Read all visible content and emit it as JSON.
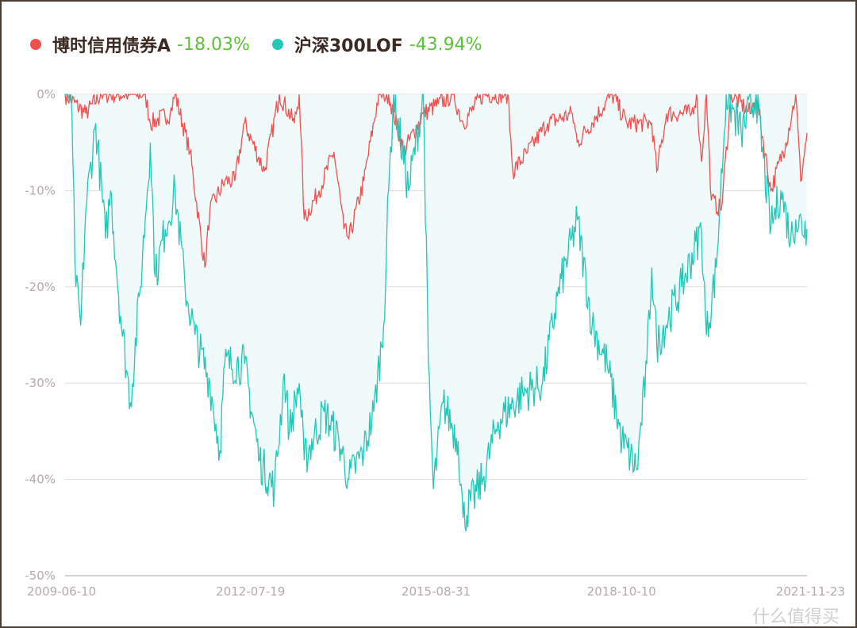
{
  "chart_data": {
    "type": "line",
    "title": "",
    "xlabel": "",
    "ylabel": "",
    "x_range": [
      "2009-06-10",
      "2021-11-23"
    ],
    "x_tick_labels": [
      "2009-06-10",
      "2012-07-19",
      "2015-08-31",
      "2018-10-10",
      "2021-11-23"
    ],
    "ylim": [
      -50,
      0
    ],
    "y_tick_labels": [
      "0%",
      "-10%",
      "-20%",
      "-30%",
      "-40%",
      "-50%"
    ],
    "y_ticks": [
      0,
      -10,
      -20,
      -30,
      -40,
      -50
    ],
    "grid": true,
    "legend_position": "top-left",
    "series": [
      {
        "name": "博时信用债券A",
        "max_drawdown_label": "-18.03%",
        "color": "#f05050",
        "points": [
          [
            "2009-06",
            0
          ],
          [
            "2009-10",
            -2
          ],
          [
            "2010-01",
            0
          ],
          [
            "2010-10",
            0
          ],
          [
            "2010-11",
            -3
          ],
          [
            "2011-03",
            -2
          ],
          [
            "2011-04",
            0
          ],
          [
            "2011-07",
            -6
          ],
          [
            "2011-10",
            -18
          ],
          [
            "2011-11",
            -12
          ],
          [
            "2012-02",
            -9
          ],
          [
            "2012-04",
            -9
          ],
          [
            "2012-06",
            -3
          ],
          [
            "2012-10",
            -8
          ],
          [
            "2013-01",
            0
          ],
          [
            "2013-04",
            -3
          ],
          [
            "2013-05",
            0
          ],
          [
            "2013-06",
            -13
          ],
          [
            "2013-09",
            -10
          ],
          [
            "2013-12",
            -6
          ],
          [
            "2014-02",
            -14
          ],
          [
            "2014-03",
            -15
          ],
          [
            "2014-06",
            -9
          ],
          [
            "2014-09",
            0
          ],
          [
            "2014-11",
            0
          ],
          [
            "2015-02",
            -6
          ],
          [
            "2015-06",
            -2
          ],
          [
            "2015-09",
            -1
          ],
          [
            "2015-12",
            0
          ],
          [
            "2016-02",
            -3
          ],
          [
            "2016-06",
            0
          ],
          [
            "2016-11",
            0
          ],
          [
            "2016-12",
            -8
          ],
          [
            "2017-03",
            -6
          ],
          [
            "2017-07",
            -3
          ],
          [
            "2017-12",
            -2
          ],
          [
            "2018-01",
            -5
          ],
          [
            "2018-08",
            0
          ],
          [
            "2018-11",
            -3
          ],
          [
            "2019-04",
            -3
          ],
          [
            "2019-05",
            -8
          ],
          [
            "2019-07",
            -2
          ],
          [
            "2019-12",
            -2
          ],
          [
            "2020-01",
            0
          ],
          [
            "2020-02",
            -7
          ],
          [
            "2020-03",
            0
          ],
          [
            "2020-04",
            -11
          ],
          [
            "2020-06",
            -12
          ],
          [
            "2020-08",
            0
          ],
          [
            "2020-12",
            -2
          ],
          [
            "2021-01",
            0
          ],
          [
            "2021-04",
            -10
          ],
          [
            "2021-07",
            -5
          ],
          [
            "2021-09",
            0
          ],
          [
            "2021-10",
            -9
          ],
          [
            "2021-11",
            -4
          ]
        ]
      },
      {
        "name": "沪深300LOF",
        "max_drawdown_label": "-43.94%",
        "color": "#22c7b8",
        "points": [
          [
            "2009-06",
            0
          ],
          [
            "2009-07",
            0
          ],
          [
            "2009-08",
            -20
          ],
          [
            "2009-09",
            -24
          ],
          [
            "2009-10",
            -12
          ],
          [
            "2009-12",
            -3
          ],
          [
            "2010-02",
            -15
          ],
          [
            "2010-03",
            -10
          ],
          [
            "2010-05",
            -23
          ],
          [
            "2010-07",
            -32
          ],
          [
            "2010-09",
            -20
          ],
          [
            "2010-11",
            -5
          ],
          [
            "2010-12",
            -19
          ],
          [
            "2011-02",
            -14
          ],
          [
            "2011-04",
            -10
          ],
          [
            "2011-06",
            -20
          ],
          [
            "2011-08",
            -25
          ],
          [
            "2011-11",
            -30
          ],
          [
            "2012-01",
            -37
          ],
          [
            "2012-02",
            -28
          ],
          [
            "2012-06",
            -28
          ],
          [
            "2012-09",
            -38
          ],
          [
            "2012-12",
            -41
          ],
          [
            "2013-02",
            -29
          ],
          [
            "2013-03",
            -35
          ],
          [
            "2013-05",
            -30
          ],
          [
            "2013-06",
            -38
          ],
          [
            "2013-10",
            -33
          ],
          [
            "2014-01",
            -36
          ],
          [
            "2014-03",
            -40
          ],
          [
            "2014-06",
            -37
          ],
          [
            "2014-08",
            -33
          ],
          [
            "2014-10",
            -24
          ],
          [
            "2014-11",
            -10
          ],
          [
            "2014-12",
            0
          ],
          [
            "2015-03",
            -10
          ],
          [
            "2015-06",
            0
          ],
          [
            "2015-07",
            -28
          ],
          [
            "2015-08",
            -41
          ],
          [
            "2015-10",
            -32
          ],
          [
            "2016-01",
            -36
          ],
          [
            "2016-02",
            -44
          ],
          [
            "2016-06",
            -40
          ],
          [
            "2016-09",
            -34
          ],
          [
            "2017-02",
            -31
          ],
          [
            "2017-06",
            -30
          ],
          [
            "2017-09",
            -21
          ],
          [
            "2018-01",
            -13
          ],
          [
            "2018-04",
            -24
          ],
          [
            "2018-07",
            -28
          ],
          [
            "2018-10",
            -36
          ],
          [
            "2019-01",
            -39
          ],
          [
            "2019-03",
            -28
          ],
          [
            "2019-04",
            -18
          ],
          [
            "2019-05",
            -26
          ],
          [
            "2019-10",
            -20
          ],
          [
            "2020-02",
            -14
          ],
          [
            "2020-03",
            -25
          ],
          [
            "2020-05",
            -18
          ],
          [
            "2020-07",
            0
          ],
          [
            "2020-10",
            -4
          ],
          [
            "2021-01",
            0
          ],
          [
            "2021-04",
            -14
          ],
          [
            "2021-06",
            -10
          ],
          [
            "2021-08",
            -15
          ],
          [
            "2021-09",
            -13
          ],
          [
            "2021-11",
            -14
          ]
        ]
      }
    ]
  },
  "watermark": "什么值得买"
}
